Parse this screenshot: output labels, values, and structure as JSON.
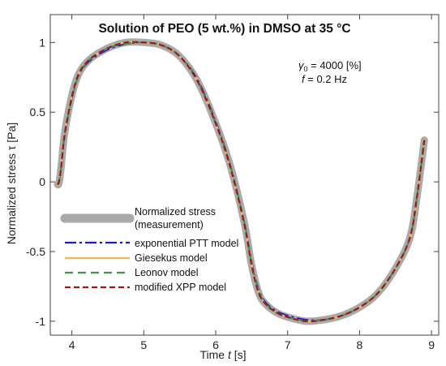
{
  "chart_data": {
    "type": "line",
    "title": "Solution of PEO (5 wt.%) in DMSO at 35 °C",
    "xlabel_text": "Time ",
    "xlabel_symbol": "t",
    "xlabel_unit": " [s]",
    "ylabel": "Normalized stress τ [Pa]",
    "xlim": [
      3.7,
      9.1
    ],
    "ylim": [
      -1.1,
      1.2
    ],
    "xticks": [
      4,
      5,
      6,
      7,
      8,
      9
    ],
    "yticks": [
      1,
      0.5,
      0,
      -0.5,
      -1
    ],
    "xtick_labels": [
      "4",
      "5",
      "6",
      "7",
      "8",
      "9"
    ],
    "ytick_labels": [
      "1",
      "0.5",
      "0",
      "-0.5",
      "-1"
    ],
    "annotations": {
      "gamma_symbol": "γ",
      "gamma_sub": "0",
      "gamma_rest": " = 4000 [%]",
      "freq_symbol": "f",
      "freq_rest": " = 0.2 Hz"
    },
    "legend_position": "lower-left",
    "legend": [
      {
        "line1": "Normalized stress",
        "line2": "(measurement)",
        "color": "#aaaaaa",
        "style": "thick"
      },
      {
        "line1": "exponential PTT model",
        "color": "#1a1acc",
        "style": "dashdot"
      },
      {
        "line1": "Giesekus model",
        "color": "#f2b860",
        "style": "solid"
      },
      {
        "line1": "Leonov model",
        "color": "#3a9a4a",
        "style": "dashed"
      },
      {
        "line1": "modified XPP model",
        "color": "#9a1a1a",
        "style": "dashed"
      }
    ],
    "series": [
      {
        "name": "Normalized stress (measurement)",
        "x": [
          3.8,
          3.82,
          3.85,
          3.9,
          4.0,
          4.1,
          4.25,
          4.5,
          4.75,
          5.0,
          5.25,
          5.5,
          5.75,
          6.0,
          6.2,
          6.4,
          6.5,
          6.6,
          6.7,
          6.85,
          7.0,
          7.25,
          7.5,
          7.75,
          8.0,
          8.25,
          8.5,
          8.7,
          8.8,
          8.9
        ],
        "y": [
          -0.02,
          -0.01,
          0.1,
          0.35,
          0.62,
          0.78,
          0.88,
          0.96,
          1.0,
          1.0,
          0.98,
          0.9,
          0.72,
          0.42,
          0.12,
          -0.3,
          -0.6,
          -0.8,
          -0.88,
          -0.94,
          -0.97,
          -1.0,
          -0.99,
          -0.96,
          -0.9,
          -0.8,
          -0.62,
          -0.4,
          -0.1,
          0.3
        ]
      },
      {
        "name": "exponential PTT model",
        "x": [
          3.8,
          3.82,
          3.85,
          3.9,
          4.0,
          4.1,
          4.25,
          4.5,
          4.75,
          5.0,
          5.25,
          5.5,
          5.75,
          6.0,
          6.2,
          6.4,
          6.5,
          6.6,
          6.7,
          6.85,
          7.0,
          7.25,
          7.5,
          7.75,
          8.0,
          8.25,
          8.5,
          8.7,
          8.8,
          8.9
        ],
        "y": [
          -0.02,
          0.0,
          0.1,
          0.33,
          0.6,
          0.77,
          0.87,
          0.95,
          0.99,
          1.0,
          0.98,
          0.9,
          0.73,
          0.43,
          0.12,
          -0.3,
          -0.58,
          -0.78,
          -0.87,
          -0.93,
          -0.96,
          -0.99,
          -0.99,
          -0.96,
          -0.9,
          -0.8,
          -0.62,
          -0.4,
          -0.1,
          0.3
        ]
      },
      {
        "name": "Giesekus model",
        "x": [
          3.8,
          3.82,
          3.85,
          3.9,
          4.0,
          4.1,
          4.25,
          4.5,
          4.75,
          5.0,
          5.25,
          5.5,
          5.75,
          6.0,
          6.2,
          6.4,
          6.5,
          6.6,
          6.7,
          6.85,
          7.0,
          7.25,
          7.5,
          7.75,
          8.0,
          8.25,
          8.5,
          8.7,
          8.8,
          8.9
        ],
        "y": [
          -0.02,
          0.0,
          0.11,
          0.34,
          0.61,
          0.78,
          0.88,
          0.96,
          1.0,
          1.0,
          0.98,
          0.9,
          0.72,
          0.42,
          0.11,
          -0.31,
          -0.59,
          -0.79,
          -0.88,
          -0.94,
          -0.97,
          -1.0,
          -0.99,
          -0.96,
          -0.9,
          -0.8,
          -0.62,
          -0.4,
          -0.1,
          0.3
        ]
      },
      {
        "name": "Leonov model",
        "x": [
          3.8,
          3.82,
          3.85,
          3.9,
          4.0,
          4.1,
          4.25,
          4.5,
          4.75,
          5.0,
          5.25,
          5.5,
          5.75,
          6.0,
          6.2,
          6.4,
          6.5,
          6.6,
          6.7,
          6.85,
          7.0,
          7.25,
          7.5,
          7.75,
          8.0,
          8.25,
          8.5,
          8.7,
          8.8,
          8.9
        ],
        "y": [
          -0.02,
          0.0,
          0.1,
          0.34,
          0.6,
          0.77,
          0.88,
          0.96,
          0.99,
          1.0,
          0.98,
          0.9,
          0.72,
          0.42,
          0.12,
          -0.3,
          -0.59,
          -0.79,
          -0.88,
          -0.94,
          -0.97,
          -1.0,
          -0.99,
          -0.96,
          -0.9,
          -0.8,
          -0.62,
          -0.4,
          -0.1,
          0.3
        ]
      },
      {
        "name": "modified XPP model",
        "x": [
          3.8,
          3.82,
          3.85,
          3.9,
          4.0,
          4.1,
          4.25,
          4.5,
          4.75,
          5.0,
          5.25,
          5.5,
          5.75,
          6.0,
          6.2,
          6.4,
          6.5,
          6.6,
          6.7,
          6.85,
          7.0,
          7.25,
          7.5,
          7.75,
          8.0,
          8.25,
          8.5,
          8.7,
          8.8,
          8.9
        ],
        "y": [
          -0.02,
          0.0,
          0.1,
          0.34,
          0.61,
          0.78,
          0.88,
          0.96,
          1.0,
          1.0,
          0.98,
          0.9,
          0.72,
          0.42,
          0.11,
          -0.31,
          -0.6,
          -0.8,
          -0.88,
          -0.94,
          -0.97,
          -1.0,
          -0.99,
          -0.96,
          -0.9,
          -0.8,
          -0.62,
          -0.4,
          -0.1,
          0.3
        ]
      }
    ]
  }
}
